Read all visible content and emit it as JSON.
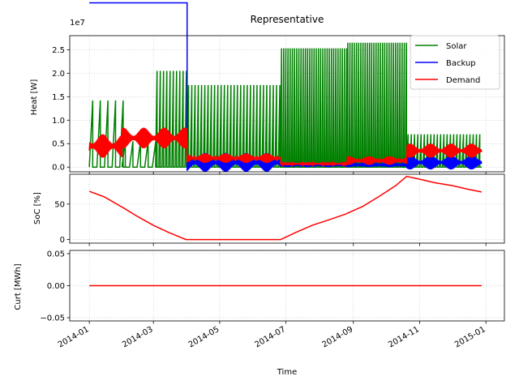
{
  "chart_data": [
    {
      "type": "line",
      "title": "Representative",
      "ylabel": "Heat [W]",
      "y_scale_label": "1e7",
      "ylim": [
        -0.1,
        2.8
      ],
      "y_ticks": [
        0.0,
        0.5,
        1.0,
        1.5,
        2.0,
        2.5
      ],
      "y_tick_labels": [
        "0.0",
        "0.5",
        "1.0",
        "1.5",
        "2.0",
        "2.5"
      ],
      "grid": true,
      "legend_position": "top-right",
      "series": [
        {
          "name": "Solar",
          "color": "#008000",
          "baseline": 0.0,
          "segments": [
            {
              "start": "2014-01-01",
              "end": "2014-01-31",
              "peak": 1.42,
              "period_days": 7
            },
            {
              "start": "2014-01-31",
              "end": "2014-03-03",
              "peak": 0.55,
              "period_days": 7
            },
            {
              "start": "2014-03-03",
              "end": "2014-03-31",
              "peak": 2.05,
              "period_days": 3
            },
            {
              "start": "2014-04-01",
              "end": "2014-06-26",
              "peak": 1.75,
              "period_days": 3
            },
            {
              "start": "2014-06-26",
              "end": "2014-08-26",
              "peak": 2.53,
              "period_days": 2
            },
            {
              "start": "2014-08-26",
              "end": "2014-10-20",
              "peak": 2.65,
              "period_days": 2
            },
            {
              "start": "2014-10-20",
              "end": "2014-12-28",
              "peak": 0.7,
              "period_days": 3
            }
          ]
        },
        {
          "name": "Backup",
          "color": "#0000ff",
          "segments": [
            {
              "start": "2014-01-01",
              "end": "2014-04-01",
              "base": 3.5,
              "amp": 0.0
            },
            {
              "start": "2014-04-01",
              "end": "2014-06-26",
              "base": 0.1,
              "amp": 0.2
            },
            {
              "start": "2014-06-26",
              "end": "2014-10-20",
              "base": 0.05,
              "amp": 0.05
            },
            {
              "start": "2014-10-20",
              "end": "2014-12-28",
              "base": 0.1,
              "amp": 0.15
            }
          ]
        },
        {
          "name": "Demand",
          "color": "#ff0000",
          "segments": [
            {
              "start": "2014-01-01",
              "end": "2014-01-31",
              "base": 0.45,
              "amp": 0.25
            },
            {
              "start": "2014-01-31",
              "end": "2014-04-01",
              "base": 0.62,
              "amp": 0.22
            },
            {
              "start": "2014-04-01",
              "end": "2014-06-26",
              "base": 0.19,
              "amp": 0.1
            },
            {
              "start": "2014-06-26",
              "end": "2014-08-26",
              "base": 0.07,
              "amp": 0.03
            },
            {
              "start": "2014-08-26",
              "end": "2014-10-20",
              "base": 0.14,
              "amp": 0.09
            },
            {
              "start": "2014-10-20",
              "end": "2014-12-28",
              "base": 0.35,
              "amp": 0.15
            }
          ]
        }
      ]
    },
    {
      "type": "line",
      "ylabel": "SoC [%]",
      "ylim": [
        -5,
        92
      ],
      "y_ticks": [
        0,
        50
      ],
      "y_tick_labels": [
        "0",
        "50"
      ],
      "grid": true,
      "series": [
        {
          "color": "#ff0000",
          "x": [
            "2014-01-01",
            "2014-01-15",
            "2014-02-01",
            "2014-02-15",
            "2014-03-01",
            "2014-03-15",
            "2014-03-31",
            "2014-04-15",
            "2014-05-01",
            "2014-05-15",
            "2014-06-01",
            "2014-06-15",
            "2014-06-26",
            "2014-07-10",
            "2014-07-25",
            "2014-08-10",
            "2014-08-25",
            "2014-09-10",
            "2014-09-25",
            "2014-10-10",
            "2014-10-20",
            "2014-11-01",
            "2014-11-15",
            "2014-12-01",
            "2014-12-15",
            "2014-12-28"
          ],
          "y": [
            68,
            60,
            45,
            32,
            20,
            10,
            0,
            0,
            0,
            0,
            0,
            0,
            0,
            10,
            20,
            28,
            36,
            47,
            61,
            76,
            89,
            85,
            80,
            76,
            71,
            67
          ]
        }
      ]
    },
    {
      "type": "line",
      "ylabel": "Curt [MWh]",
      "xlabel": "Time",
      "ylim": [
        -0.055,
        0.055
      ],
      "y_ticks": [
        -0.05,
        0.0,
        0.05
      ],
      "y_tick_labels": [
        "−0.05",
        "0.00",
        "0.05"
      ],
      "grid": true,
      "x_ticks": [
        "2014-01-01",
        "2014-03-01",
        "2014-05-01",
        "2014-07-01",
        "2014-09-01",
        "2014-11-01",
        "2015-01-01"
      ],
      "x_tick_labels": [
        "2014-01",
        "2014-03",
        "2014-05",
        "2014-07",
        "2014-09",
        "2014-11",
        "2015-01"
      ],
      "series": [
        {
          "color": "#ff0000",
          "x": [
            "2014-01-01",
            "2014-12-28"
          ],
          "y": [
            0.0,
            0.0
          ]
        }
      ]
    }
  ]
}
